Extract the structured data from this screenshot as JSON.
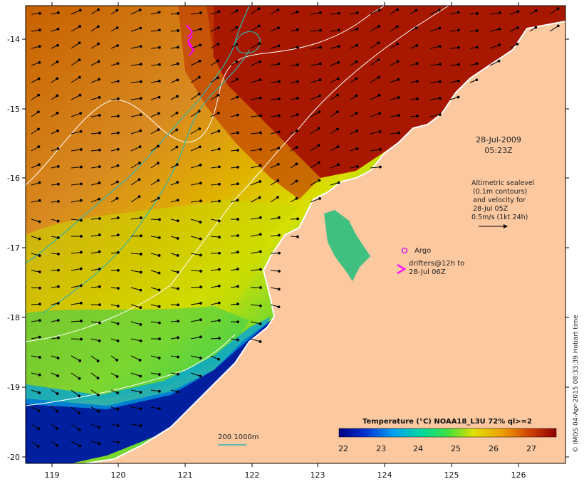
{
  "map": {
    "lon_ticks": [
      "119",
      "120",
      "121",
      "122",
      "123",
      "124",
      "125",
      "126"
    ],
    "lat_ticks": [
      "-14",
      "-15",
      "-16",
      "-17",
      "-18",
      "-19",
      "-20"
    ],
    "timestamp": {
      "date": "28-Jul-2009",
      "time": "05:23Z"
    },
    "altimetry_note": [
      "Altimetric sealevel",
      "(0.1m contours)",
      "and velocity for",
      "28-Jul 05Z",
      "0.5m/s (1kt 24h)"
    ],
    "argo_label": "Argo",
    "drifter_note": [
      "drifters@12h to",
      "28-Jul 06Z"
    ],
    "depth_contours_label": "200  1000m",
    "colorbar": {
      "title": "Temperature (°C) NOAA18_L3U 72% ql>=2",
      "ticks": [
        "22",
        "23",
        "24",
        "25",
        "26",
        "27"
      ],
      "range": [
        21.6,
        27.6
      ]
    },
    "credit": "© IMOS 04-Apr-2015 08:33:39 Hobart time",
    "colors": {
      "land": "#fbc8a0",
      "coast": "#ffffff",
      "contour_depth": "#2fb5b0",
      "sealevel": "#ffffff",
      "argo": "#e020e0",
      "drifter": "#ff00ff"
    }
  }
}
